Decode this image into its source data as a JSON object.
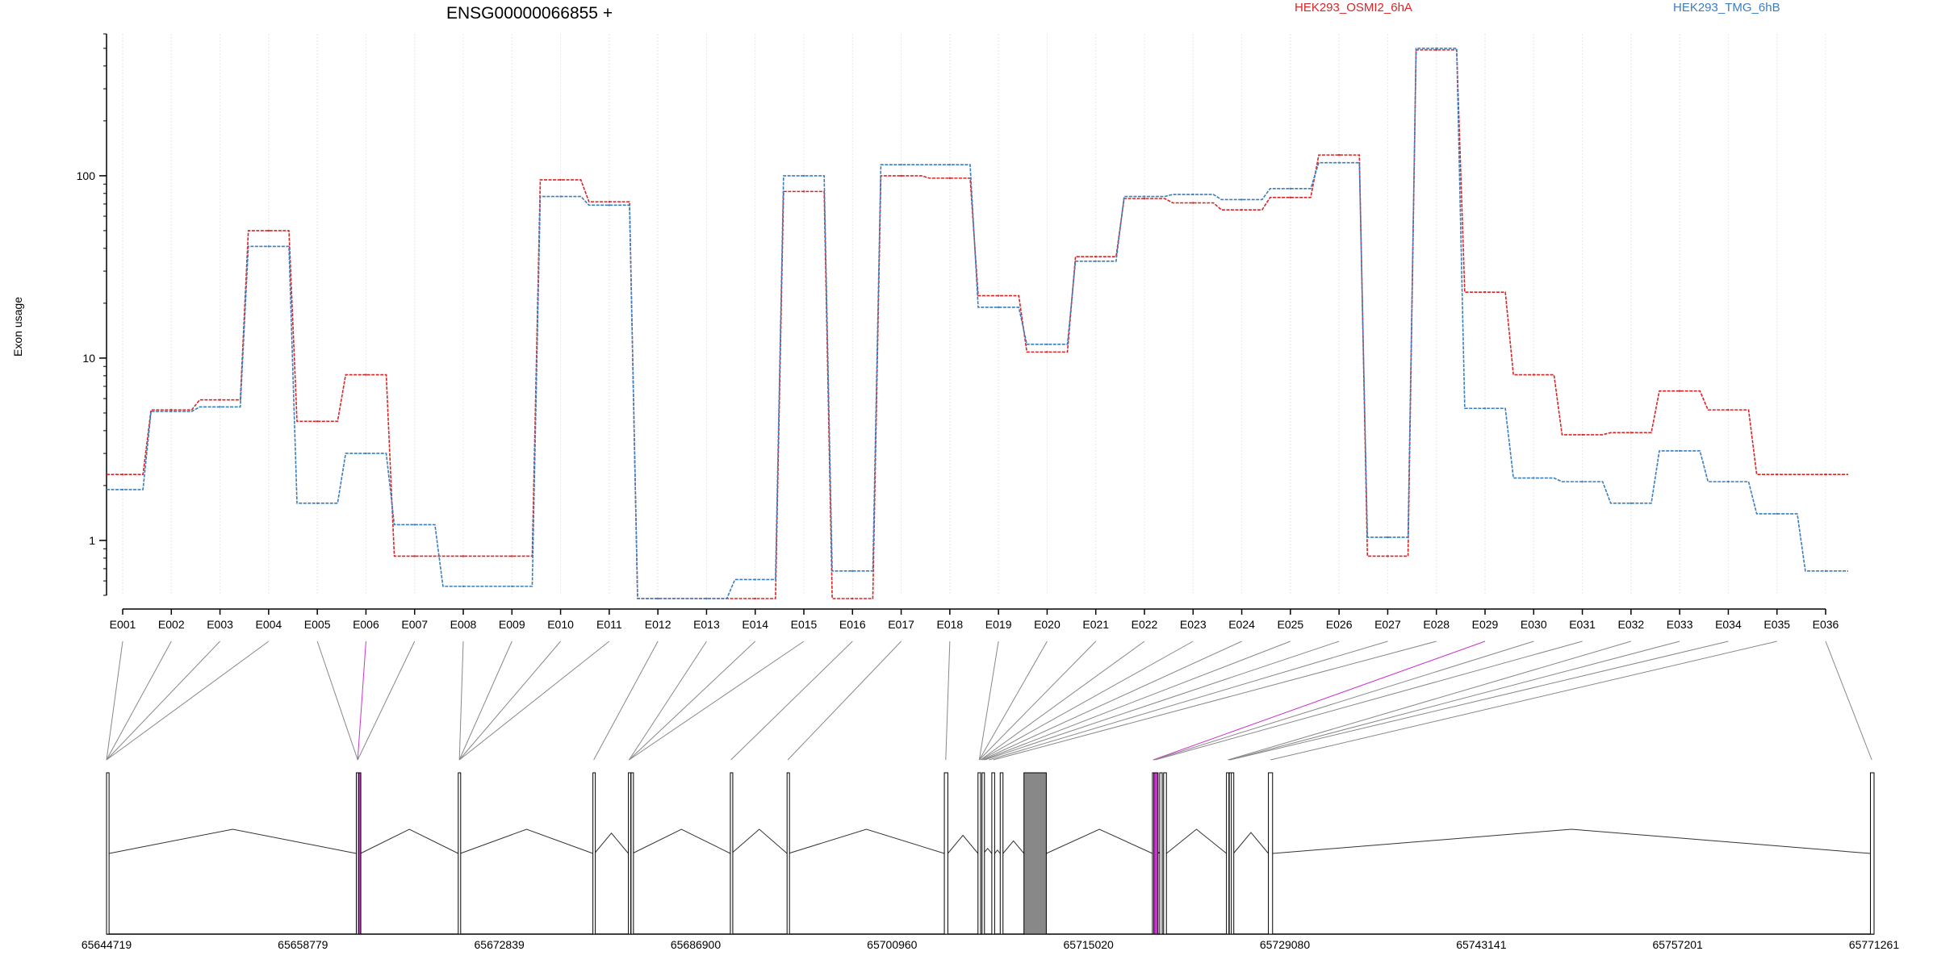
{
  "chart_data": {
    "type": "line",
    "title": "ENSG00000066855 +",
    "ylabel": "Exon usage",
    "yscale": "log",
    "ylim": [
      0.5,
      600
    ],
    "yticks": [
      1,
      10,
      100
    ],
    "ytick_labels": [
      "1",
      "10",
      "100"
    ],
    "grid": "vertical",
    "legend_position": "top-right",
    "colors": {
      "series_a": "#d62728",
      "series_b": "#3a7ebf",
      "highlight": "#cc33cc",
      "gray_exon": "#c8c8c8"
    },
    "categories": [
      "E001",
      "E002",
      "E003",
      "E004",
      "E005",
      "E006",
      "E007",
      "E008",
      "E009",
      "E010",
      "E011",
      "E012",
      "E013",
      "E014",
      "E015",
      "E016",
      "E017",
      "E018",
      "E019",
      "E020",
      "E021",
      "E022",
      "E023",
      "E024",
      "E025",
      "E026",
      "E027",
      "E028",
      "E029",
      "E030",
      "E031",
      "E032",
      "E033",
      "E034",
      "E035",
      "E036"
    ],
    "series": [
      {
        "name": "HEK293_OSMI2_6hA",
        "color": "#d62728",
        "values": [
          2.3,
          5.2,
          5.9,
          50,
          4.5,
          8.1,
          0.82,
          0.82,
          0.82,
          95,
          72,
          0.48,
          0.48,
          0.48,
          82,
          0.48,
          100,
          97,
          22,
          10.8,
          36,
          75,
          71,
          65,
          76,
          130,
          0.82,
          490,
          23,
          8.1,
          3.8,
          3.9,
          6.6,
          5.2,
          2.3,
          2.3
        ]
      },
      {
        "name": "HEK293_TMG_6hB",
        "color": "#3a7ebf",
        "values": [
          1.9,
          5.1,
          5.4,
          41,
          1.6,
          3.0,
          1.22,
          0.56,
          0.56,
          77,
          69,
          0.48,
          0.48,
          0.61,
          100,
          0.68,
          115,
          115,
          19,
          11.9,
          34,
          77,
          79,
          74,
          85,
          118,
          1.04,
          500,
          5.3,
          2.2,
          2.1,
          1.6,
          3.1,
          2.1,
          1.4,
          0.68
        ]
      }
    ],
    "gene_model": {
      "coordinates": [
        "65644719",
        "65658779",
        "65672839",
        "65686900",
        "65700960",
        "65715020",
        "65729080",
        "65743141",
        "65757201",
        "65771261"
      ],
      "exon_bounds": [
        [
          65644719,
          65644900
        ],
        [
          65662600,
          65662700
        ],
        [
          65662750,
          65662900
        ],
        [
          65669900,
          65670050
        ],
        [
          65679540,
          65679650
        ],
        [
          65682080,
          65682180
        ],
        [
          65682270,
          65682370
        ],
        [
          65689380,
          65689460
        ],
        [
          65693440,
          65693540
        ],
        [
          65704700,
          65704950
        ],
        [
          65707110,
          65707300
        ],
        [
          65707400,
          65707500
        ],
        [
          65708100,
          65708300
        ],
        [
          65708700,
          65708900
        ],
        [
          65710400,
          65712000
        ],
        [
          65719600,
          65719700
        ],
        [
          65719700,
          65720000
        ],
        [
          65720120,
          65720300
        ],
        [
          65720400,
          65720600
        ],
        [
          65724900,
          65725050
        ],
        [
          65725100,
          65725200
        ],
        [
          65725250,
          65725400
        ],
        [
          65727900,
          65728200
        ],
        [
          65771000,
          65771261
        ]
      ],
      "exon_colors": [
        "white",
        "white",
        "highlight",
        "white",
        "white",
        "white",
        "white",
        "white",
        "white",
        "white",
        "white",
        "white",
        "white",
        "white",
        "gray",
        "white",
        "highlight",
        "white",
        "white",
        "white",
        "white",
        "white",
        "white",
        "white"
      ],
      "connector_colors": [
        "gray",
        "gray",
        "gray",
        "gray",
        "gray",
        "highlight",
        "gray",
        "gray",
        "gray",
        "gray",
        "gray",
        "gray",
        "gray",
        "gray",
        "gray",
        "gray",
        "gray",
        "gray",
        "gray",
        "gray",
        "gray",
        "gray",
        "gray",
        "gray",
        "gray",
        "gray",
        "gray",
        "gray",
        "highlight",
        "gray",
        "gray",
        "gray",
        "gray",
        "gray",
        "gray",
        "gray"
      ],
      "bin_coords": [
        65644719,
        65644719,
        65644719,
        65644719,
        65662700,
        65662700,
        65662700,
        65669980,
        65669980,
        65669980,
        65669980,
        65679600,
        65682130,
        65682130,
        65682130,
        65689420,
        65693490,
        65704800,
        65707200,
        65707200,
        65707200,
        65707300,
        65707300,
        65707400,
        65707500,
        65707600,
        65707900,
        65708200,
        65719650,
        65719700,
        65719800,
        65725000,
        65725100,
        65725150,
        65728050,
        65771100
      ]
    }
  }
}
